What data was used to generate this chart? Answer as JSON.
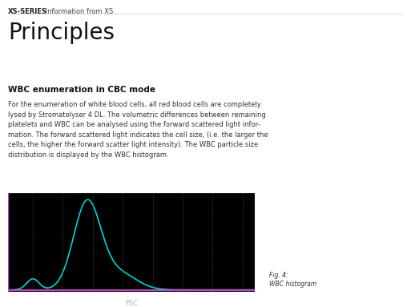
{
  "header_bold": "XS-SERIES",
  "header_regular": " Information from XS",
  "title": "Principles",
  "section_title": "WBC enumeration in CBC mode",
  "body_text": "For the enumeration of white blood cells, all red blood cells are completely\nlysed by Stromatolyser 4 DL. The volumetric differences between remaining\nplatelets and WBC can be analysed using the forward scattered light infor-\nmation. The forward scattered light indicates the cell size, (i.e. the larger the\ncells, the higher the forward scatter light intensity). The WBC particle size\ndistribution is displayed by the WBC histogram.",
  "fig_label": "Fig. 4:",
  "fig_caption": "WBC histogram",
  "plot_bg": "#000000",
  "page_bg": "#ffffff",
  "curve_color": "#00d4d4",
  "axis_color": "#cc44cc",
  "grid_color": "#444466",
  "xlabel": "FSC",
  "xlabel_color": "#aaaacc"
}
